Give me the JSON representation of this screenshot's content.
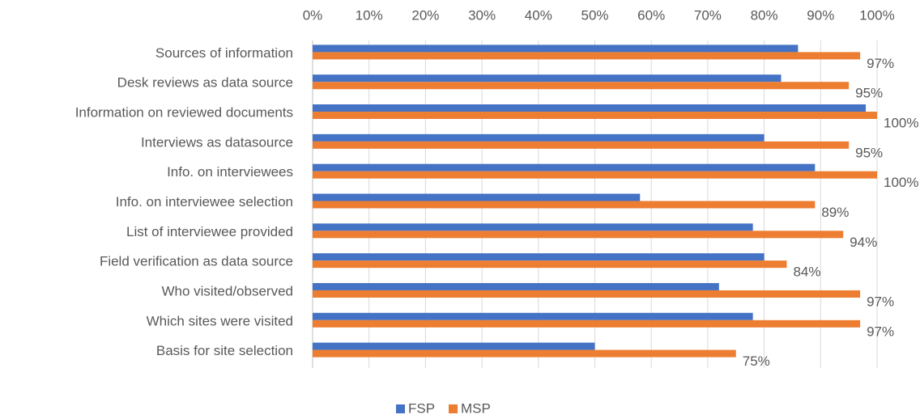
{
  "chart_data": {
    "type": "bar",
    "orientation": "horizontal",
    "categories": [
      "Sources of information",
      "Desk reviews as data source",
      "Information on reviewed documents",
      "Interviews as datasource",
      "Info. on interviewees",
      "Info. on interviewee selection",
      "List of interviewee provided",
      "Field verification as data source",
      "Who visited/observed",
      "Which sites were visited",
      "Basis for site selection"
    ],
    "series": [
      {
        "name": "FSP",
        "color": "#4472c4",
        "values": [
          86,
          83,
          98,
          80,
          89,
          58,
          78,
          80,
          72,
          78,
          50
        ]
      },
      {
        "name": "MSP",
        "color": "#ed7d31",
        "values": [
          97,
          95,
          100,
          95,
          100,
          89,
          94,
          84,
          97,
          97,
          75
        ],
        "value_labels": [
          "97%",
          "95%",
          "100%",
          "95%",
          "100%",
          "89%",
          "94%",
          "84%",
          "97%",
          "97%",
          "75%"
        ]
      }
    ],
    "xlim": [
      0,
      100
    ],
    "xticks": [
      {
        "value": 0,
        "label": "0%"
      },
      {
        "value": 10,
        "label": "10%"
      },
      {
        "value": 20,
        "label": "20%"
      },
      {
        "value": 30,
        "label": "30%"
      },
      {
        "value": 40,
        "label": "40%"
      },
      {
        "value": 50,
        "label": "50%"
      },
      {
        "value": 60,
        "label": "60%"
      },
      {
        "value": 70,
        "label": "70%"
      },
      {
        "value": 80,
        "label": "80%"
      },
      {
        "value": 90,
        "label": "90%"
      },
      {
        "value": 100,
        "label": "100%"
      }
    ],
    "grid": true,
    "legend": "bottom"
  }
}
